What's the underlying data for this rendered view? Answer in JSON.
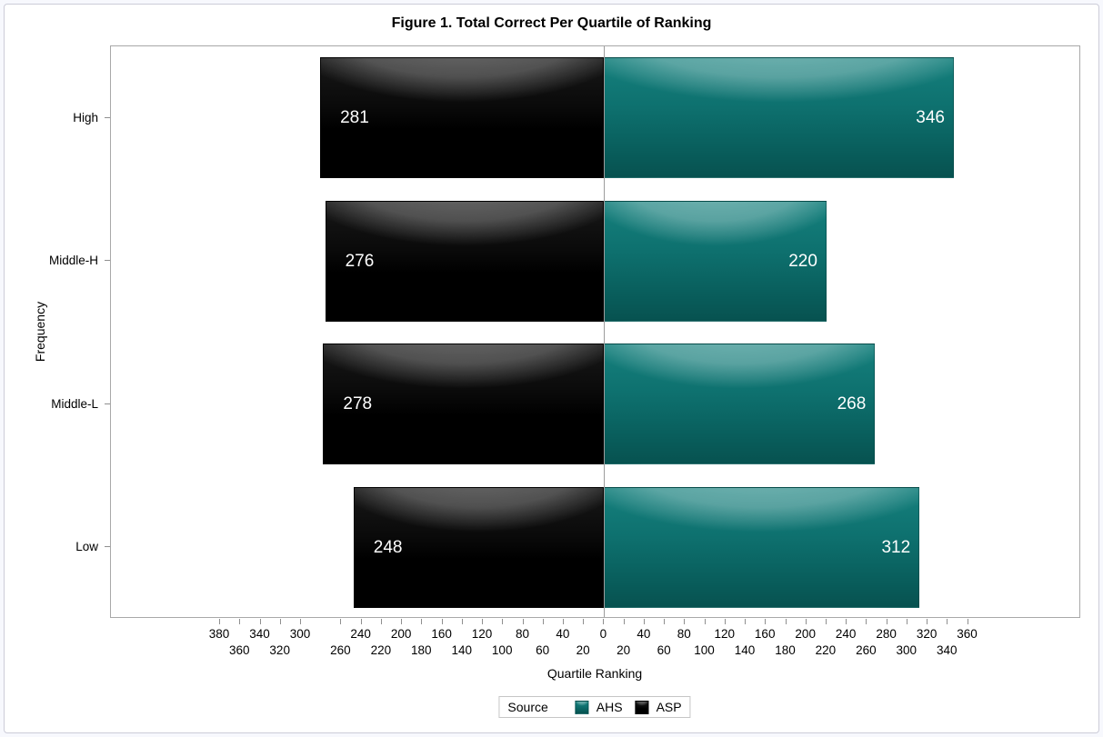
{
  "chart_data": {
    "type": "bar",
    "variant": "butterfly-diverging-horizontal",
    "title": "Figure 1. Total Correct Per Quartile of Ranking",
    "xlabel": "Quartile Ranking",
    "ylabel": "Frequency",
    "categories": [
      "High",
      "Middle-H",
      "Middle-L",
      "Low"
    ],
    "series": [
      {
        "name": "ASP",
        "side": "left",
        "skin": "black",
        "color": "#000000",
        "values": [
          281,
          276,
          278,
          248
        ]
      },
      {
        "name": "AHS",
        "side": "right",
        "skin": "teal",
        "color": "#0B6361",
        "values": [
          346,
          220,
          268,
          312
        ]
      }
    ],
    "xlim": [
      -488,
      472
    ],
    "xticks": {
      "zero": 0,
      "left": [
        20,
        40,
        60,
        80,
        100,
        120,
        140,
        160,
        180,
        200,
        220,
        240,
        260,
        300,
        320,
        340,
        360,
        380
      ],
      "right": [
        20,
        40,
        60,
        80,
        100,
        120,
        140,
        160,
        180,
        200,
        220,
        240,
        260,
        280,
        300,
        320,
        340,
        360
      ]
    },
    "grid": false,
    "zero_line_color": "#9c9c9c",
    "legend": {
      "title": "Source",
      "position": "bottom-center",
      "entries": [
        {
          "label": "AHS",
          "skin": "teal",
          "color": "#0B6361"
        },
        {
          "label": "ASP",
          "skin": "black",
          "color": "#000000"
        }
      ]
    }
  }
}
